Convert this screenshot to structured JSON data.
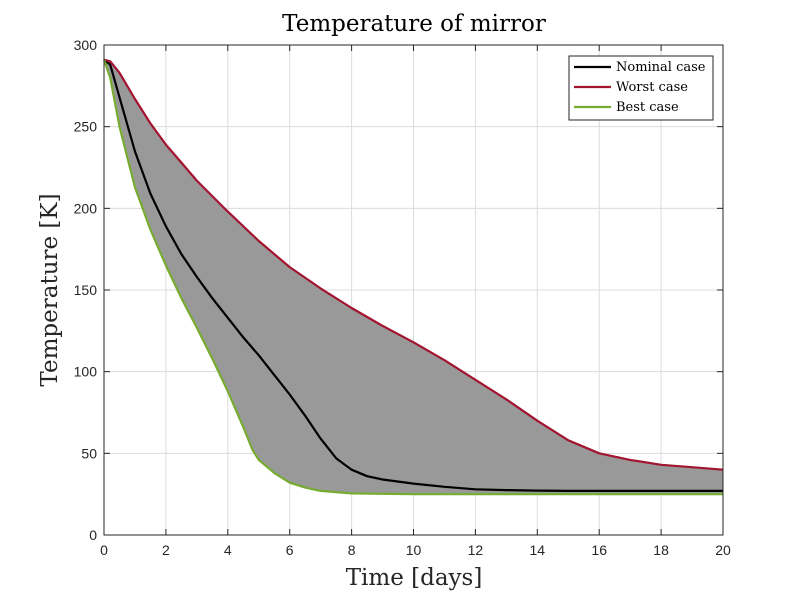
{
  "chart_data": {
    "type": "area",
    "title": "Temperature of mirror",
    "xlabel": "Time [days]",
    "ylabel": "Temperature [K]",
    "xlim": [
      0,
      20
    ],
    "ylim": [
      0,
      300
    ],
    "xticks": [
      0,
      2,
      4,
      6,
      8,
      10,
      12,
      14,
      16,
      18,
      20
    ],
    "yticks": [
      0,
      50,
      100,
      150,
      200,
      250,
      300
    ],
    "grid": true,
    "legend_position": "top-right",
    "band": {
      "description_color": "#999999",
      "between_series": [
        "Worst case",
        "Best case"
      ]
    },
    "series": [
      {
        "name": "Nominal case",
        "color": "#000000",
        "x": [
          0,
          0.2,
          0.5,
          1,
          1.5,
          2,
          2.5,
          3,
          3.5,
          4,
          4.5,
          5,
          5.5,
          6,
          6.5,
          7,
          7.5,
          8,
          8.5,
          9,
          10,
          11,
          12,
          13,
          14,
          15,
          16,
          17,
          18,
          19,
          20
        ],
        "y": [
          291,
          288,
          268,
          235,
          209,
          189,
          172,
          158,
          145,
          133,
          121,
          110,
          98,
          86,
          73,
          59,
          47,
          40,
          36,
          34,
          31.5,
          29.5,
          28,
          27.5,
          27.2,
          27,
          27,
          27,
          27,
          27,
          27
        ]
      },
      {
        "name": "Worst case",
        "color": "#a2142f",
        "x": [
          0,
          0.2,
          0.5,
          1,
          1.5,
          2,
          2.5,
          3,
          4,
          5,
          6,
          7,
          8,
          9,
          10,
          11,
          12,
          13,
          14,
          15,
          16,
          17,
          18,
          19,
          20
        ],
        "y": [
          291,
          290,
          283,
          267,
          252,
          239,
          228,
          217,
          198,
          180,
          164,
          151,
          139,
          128,
          118,
          107,
          95,
          83,
          70,
          58,
          50,
          46,
          43,
          41.5,
          40
        ]
      },
      {
        "name": "Best case",
        "color": "#77ac30",
        "x": [
          0,
          0.2,
          0.5,
          1,
          1.5,
          2,
          2.5,
          3,
          3.5,
          4,
          4.5,
          4.8,
          5,
          5.5,
          6,
          6.5,
          7,
          8,
          10,
          12,
          14,
          16,
          18,
          20
        ],
        "y": [
          291,
          280,
          250,
          213,
          187,
          165,
          145,
          127,
          108,
          88,
          66,
          52,
          46,
          38,
          32,
          29,
          27,
          25.5,
          25,
          25,
          25,
          25,
          25,
          25
        ]
      }
    ]
  }
}
